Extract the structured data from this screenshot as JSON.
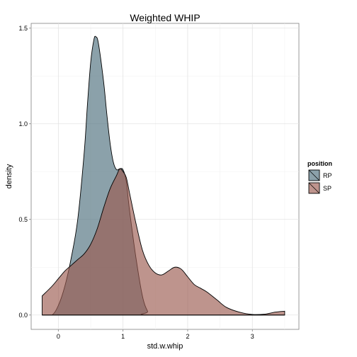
{
  "chart_data": {
    "type": "area",
    "title": "Weighted WHIP",
    "xlabel": "std.w.whip",
    "ylabel": "density",
    "xlim": [
      -0.42,
      3.72
    ],
    "ylim": [
      -0.075,
      1.525
    ],
    "x_ticks": [
      0,
      1,
      2,
      3
    ],
    "y_ticks": [
      0.0,
      0.5,
      1.0,
      1.5
    ],
    "x_tick_labels": [
      "0",
      "1",
      "2",
      "3"
    ],
    "y_tick_labels": [
      "0.0",
      "0.5",
      "1.0",
      "1.5"
    ],
    "grid": true,
    "legend_title": "position",
    "legend_position": "right",
    "series": [
      {
        "name": "RP",
        "color": "#4d6f7d",
        "fill_opacity": 0.65,
        "points": [
          [
            -0.25,
            0.0
          ],
          [
            -0.1,
            0.0
          ],
          [
            0.0,
            0.05
          ],
          [
            0.1,
            0.15
          ],
          [
            0.2,
            0.3
          ],
          [
            0.3,
            0.5
          ],
          [
            0.4,
            0.85
          ],
          [
            0.45,
            1.1
          ],
          [
            0.5,
            1.32
          ],
          [
            0.55,
            1.44
          ],
          [
            0.58,
            1.455
          ],
          [
            0.62,
            1.42
          ],
          [
            0.7,
            1.22
          ],
          [
            0.75,
            1.05
          ],
          [
            0.8,
            0.9
          ],
          [
            0.85,
            0.8
          ],
          [
            0.9,
            0.76
          ],
          [
            0.95,
            0.765
          ],
          [
            1.0,
            0.76
          ],
          [
            1.05,
            0.7
          ],
          [
            1.1,
            0.55
          ],
          [
            1.2,
            0.3
          ],
          [
            1.3,
            0.1
          ],
          [
            1.38,
            0.02
          ],
          [
            1.45,
            0.0
          ],
          [
            3.5,
            0.0
          ]
        ]
      },
      {
        "name": "SP",
        "color": "#9b5a50",
        "fill_opacity": 0.65,
        "points": [
          [
            -0.25,
            0.1
          ],
          [
            -0.1,
            0.15
          ],
          [
            0.0,
            0.19
          ],
          [
            0.1,
            0.23
          ],
          [
            0.2,
            0.26
          ],
          [
            0.3,
            0.29
          ],
          [
            0.4,
            0.32
          ],
          [
            0.5,
            0.37
          ],
          [
            0.6,
            0.45
          ],
          [
            0.7,
            0.56
          ],
          [
            0.8,
            0.66
          ],
          [
            0.9,
            0.73
          ],
          [
            0.95,
            0.765
          ],
          [
            1.0,
            0.75
          ],
          [
            1.05,
            0.72
          ],
          [
            1.1,
            0.64
          ],
          [
            1.2,
            0.48
          ],
          [
            1.3,
            0.34
          ],
          [
            1.4,
            0.26
          ],
          [
            1.5,
            0.22
          ],
          [
            1.6,
            0.21
          ],
          [
            1.7,
            0.23
          ],
          [
            1.8,
            0.25
          ],
          [
            1.9,
            0.24
          ],
          [
            2.0,
            0.2
          ],
          [
            2.1,
            0.16
          ],
          [
            2.2,
            0.14
          ],
          [
            2.3,
            0.12
          ],
          [
            2.45,
            0.08
          ],
          [
            2.6,
            0.04
          ],
          [
            2.8,
            0.015
          ],
          [
            3.0,
            0.003
          ],
          [
            3.2,
            0.005
          ],
          [
            3.35,
            0.015
          ],
          [
            3.5,
            0.02
          ]
        ]
      }
    ]
  }
}
